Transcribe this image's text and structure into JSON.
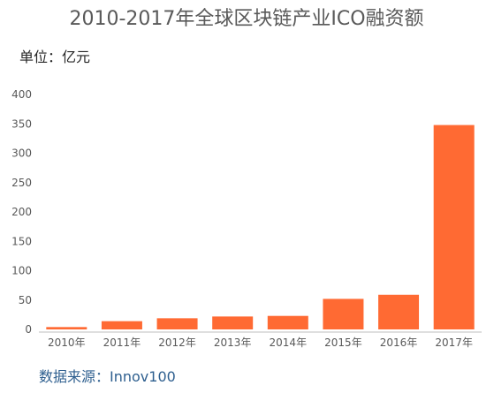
{
  "chart_data": {
    "type": "bar",
    "title": "2010-2017年全球区块链产业ICO融资额",
    "unit_label": "单位：亿元",
    "categories": [
      "2010年",
      "2011年",
      "2012年",
      "2013年",
      "2014年",
      "2015年",
      "2016年",
      "2017年"
    ],
    "values": [
      4,
      14,
      19,
      22,
      23,
      52,
      59,
      348
    ],
    "ylim": [
      0,
      400
    ],
    "yticks": [
      "0",
      "50",
      "100",
      "150",
      "200",
      "250",
      "300",
      "350",
      "400"
    ],
    "grid": false,
    "legend": "none",
    "bar_color": "#ff6a33",
    "axis_color": "#bfbfbf",
    "source_label": "数据来源：Innov100"
  }
}
